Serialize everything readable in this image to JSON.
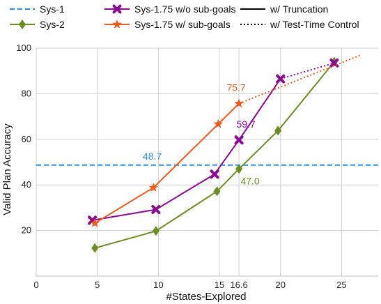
{
  "chart_data": {
    "type": "line",
    "xlabel": "#States-Explored",
    "ylabel": "Valid Plan Accuracy",
    "xlim": [
      0,
      28
    ],
    "ylim": [
      0,
      100
    ],
    "x_ticks": [
      0,
      5,
      10,
      15,
      16.6,
      20,
      25
    ],
    "x_tick_labels": [
      "0",
      "5",
      "10",
      "15",
      "16.6",
      "20",
      "25"
    ],
    "y_ticks": [
      20,
      40,
      60,
      80,
      100
    ],
    "y_tick_labels": [
      "20",
      "40",
      "60",
      "80",
      "100"
    ],
    "grid": true,
    "legend_position": "top",
    "legend": [
      {
        "label": "Sys-1",
        "style": "dashed",
        "color": "#2b8fe5"
      },
      {
        "label": "Sys-1.75 w/o sub-goals",
        "style": "solid",
        "marker": "x",
        "color": "#8b0a93"
      },
      {
        "label": "w/ Truncation",
        "style": "solid",
        "color": "#000000"
      },
      {
        "label": "Sys-2",
        "style": "solid",
        "marker": "diamond",
        "color": "#6a8e23"
      },
      {
        "label": "Sys-1.75 w/ sub-goals",
        "style": "solid",
        "marker": "star",
        "color": "#f05a1e"
      },
      {
        "label": "w/ Test-Time Control",
        "style": "dotted",
        "color": "#000000"
      }
    ],
    "series": [
      {
        "name": "Sys-1",
        "color": "#2b8fe5",
        "style": "dashed",
        "hline": 48.7
      },
      {
        "name": "Sys-2",
        "color": "#6a8e23",
        "marker": "diamond",
        "x": [
          4.8,
          9.8,
          14.8,
          16.6,
          19.8,
          24.4
        ],
        "y": [
          12.3,
          19.8,
          37.2,
          47.0,
          63.8,
          94.0
        ],
        "dotted_from_index": 99
      },
      {
        "name": "Sys-1.75 w/o sub-goals",
        "color": "#8b0a93",
        "marker": "x",
        "x": [
          4.6,
          9.8,
          14.6,
          16.6,
          20.0,
          24.4
        ],
        "y": [
          24.5,
          29.2,
          44.7,
          59.7,
          86.5,
          93.5
        ],
        "dotted_from_index": 4
      },
      {
        "name": "Sys-1.75 w/ sub-goals",
        "color": "#f05a1e",
        "marker": "star",
        "x": [
          4.8,
          9.6,
          14.9,
          16.6,
          26.5
        ],
        "y": [
          23.2,
          38.8,
          66.7,
          75.7,
          96.8
        ],
        "dotted_from_index": 3
      }
    ],
    "annotations": [
      {
        "text": "48.7",
        "x": 9.5,
        "y": 48.7,
        "color": "#2b8fe5"
      },
      {
        "text": "75.7",
        "x": 16.6,
        "y": 75.7,
        "color": "#f05a1e"
      },
      {
        "text": "59.7",
        "x": 16.6,
        "y": 59.7,
        "color": "#8b0a93"
      },
      {
        "text": "47.0",
        "x": 16.6,
        "y": 47.0,
        "color": "#6a8e23"
      }
    ]
  }
}
